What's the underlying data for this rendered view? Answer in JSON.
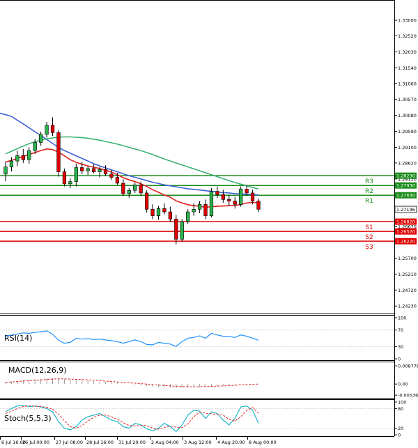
{
  "chart_data": {
    "type": "candlestick",
    "main": {
      "y_range": [
        1.24,
        1.336
      ],
      "price_ticks": [
        "1.33000",
        "1.32520",
        "1.32030",
        "1.31540",
        "1.31060",
        "1.30570",
        "1.30080",
        "1.29590",
        "1.29100",
        "1.28620",
        "1.28130",
        "1.27640",
        "1.27160",
        "1.26670",
        "1.26180",
        "1.25700",
        "1.25210",
        "1.24720",
        "1.24230"
      ],
      "time_labels": [
        "6 Jul 16:00",
        "26 Jul 00:00",
        "27 Jul 08:00",
        "28 Jul 16:00",
        "31 Jul 20:00",
        "2 Aug 04:00",
        "3 Aug 12:00",
        "4 Aug 20:00",
        "8 Aug 00:00"
      ],
      "levels": [
        {
          "name": "R3",
          "value": 1.2823,
          "tag": "1.28230",
          "color": "#1a8c1a"
        },
        {
          "name": "R2",
          "value": 1.2793,
          "tag": "1.27930",
          "color": "#1a8c1a"
        },
        {
          "name": "R1",
          "value": 1.2763,
          "tag": "1.27630",
          "color": "#1a8c1a"
        },
        {
          "name": "S1",
          "value": 1.2682,
          "tag": "1.26820",
          "color": "#e00000"
        },
        {
          "name": "S2",
          "value": 1.2652,
          "tag": "1.26520",
          "color": "#e00000"
        },
        {
          "name": "S3",
          "value": 1.2622,
          "tag": "1.26220",
          "color": "#e00000"
        }
      ],
      "current_price": {
        "value": 1.27196,
        "tag": "1.27196"
      },
      "candles": [
        {
          "o": 1.2828,
          "h": 1.2866,
          "l": 1.2806,
          "c": 1.285
        },
        {
          "o": 1.285,
          "h": 1.288,
          "l": 1.2836,
          "c": 1.2868
        },
        {
          "o": 1.2868,
          "h": 1.2898,
          "l": 1.2852,
          "c": 1.2885
        },
        {
          "o": 1.2885,
          "h": 1.2905,
          "l": 1.2862,
          "c": 1.2872
        },
        {
          "o": 1.2872,
          "h": 1.291,
          "l": 1.286,
          "c": 1.29
        },
        {
          "o": 1.29,
          "h": 1.2935,
          "l": 1.289,
          "c": 1.2925
        },
        {
          "o": 1.2925,
          "h": 1.2958,
          "l": 1.2915,
          "c": 1.295
        },
        {
          "o": 1.295,
          "h": 1.2988,
          "l": 1.294,
          "c": 1.2978
        },
        {
          "o": 1.2978,
          "h": 1.3002,
          "l": 1.2945,
          "c": 1.2955
        },
        {
          "o": 1.2955,
          "h": 1.2962,
          "l": 1.282,
          "c": 1.2835
        },
        {
          "o": 1.2835,
          "h": 1.2845,
          "l": 1.279,
          "c": 1.2798
        },
        {
          "o": 1.2798,
          "h": 1.2815,
          "l": 1.2785,
          "c": 1.2805
        },
        {
          "o": 1.2805,
          "h": 1.286,
          "l": 1.279,
          "c": 1.2848
        },
        {
          "o": 1.2848,
          "h": 1.2865,
          "l": 1.2828,
          "c": 1.2838
        },
        {
          "o": 1.2838,
          "h": 1.2852,
          "l": 1.2825,
          "c": 1.2845
        },
        {
          "o": 1.2845,
          "h": 1.2858,
          "l": 1.283,
          "c": 1.2835
        },
        {
          "o": 1.2835,
          "h": 1.285,
          "l": 1.2818,
          "c": 1.2842
        },
        {
          "o": 1.2842,
          "h": 1.2855,
          "l": 1.2822,
          "c": 1.2828
        },
        {
          "o": 1.2828,
          "h": 1.284,
          "l": 1.281,
          "c": 1.2818
        },
        {
          "o": 1.2818,
          "h": 1.2832,
          "l": 1.2795,
          "c": 1.28
        },
        {
          "o": 1.28,
          "h": 1.2812,
          "l": 1.276,
          "c": 1.2768
        },
        {
          "o": 1.2768,
          "h": 1.2785,
          "l": 1.2755,
          "c": 1.2778
        },
        {
          "o": 1.2778,
          "h": 1.2802,
          "l": 1.277,
          "c": 1.2795
        },
        {
          "o": 1.2795,
          "h": 1.2805,
          "l": 1.276,
          "c": 1.277
        },
        {
          "o": 1.277,
          "h": 1.2778,
          "l": 1.271,
          "c": 1.272
        },
        {
          "o": 1.272,
          "h": 1.2735,
          "l": 1.269,
          "c": 1.27
        },
        {
          "o": 1.27,
          "h": 1.273,
          "l": 1.2688,
          "c": 1.2722
        },
        {
          "o": 1.2722,
          "h": 1.2738,
          "l": 1.2705,
          "c": 1.2712
        },
        {
          "o": 1.2712,
          "h": 1.2728,
          "l": 1.268,
          "c": 1.269
        },
        {
          "o": 1.269,
          "h": 1.2702,
          "l": 1.2612,
          "c": 1.2628
        },
        {
          "o": 1.2628,
          "h": 1.269,
          "l": 1.262,
          "c": 1.2682
        },
        {
          "o": 1.2682,
          "h": 1.272,
          "l": 1.2675,
          "c": 1.2712
        },
        {
          "o": 1.2712,
          "h": 1.2738,
          "l": 1.27,
          "c": 1.272
        },
        {
          "o": 1.272,
          "h": 1.2745,
          "l": 1.2708,
          "c": 1.2735
        },
        {
          "o": 1.2735,
          "h": 1.275,
          "l": 1.269,
          "c": 1.27
        },
        {
          "o": 1.27,
          "h": 1.2785,
          "l": 1.2695,
          "c": 1.2775
        },
        {
          "o": 1.2775,
          "h": 1.279,
          "l": 1.2755,
          "c": 1.2765
        },
        {
          "o": 1.2765,
          "h": 1.278,
          "l": 1.274,
          "c": 1.275
        },
        {
          "o": 1.275,
          "h": 1.2765,
          "l": 1.273,
          "c": 1.2745
        },
        {
          "o": 1.2745,
          "h": 1.2758,
          "l": 1.2722,
          "c": 1.2735
        },
        {
          "o": 1.2735,
          "h": 1.279,
          "l": 1.2728,
          "c": 1.2782
        },
        {
          "o": 1.2782,
          "h": 1.2795,
          "l": 1.2762,
          "c": 1.277
        },
        {
          "o": 1.277,
          "h": 1.278,
          "l": 1.2735,
          "c": 1.2745
        },
        {
          "o": 1.2745,
          "h": 1.2752,
          "l": 1.2712,
          "c": 1.272
        }
      ],
      "moving_averages": [
        {
          "name": "MA blue",
          "color": "#3f5fd6",
          "values": [
            1.3015,
            1.3005,
            1.2993,
            1.2982,
            1.297,
            1.2958,
            1.2946,
            1.2934,
            1.2922,
            1.291,
            1.29,
            1.2892,
            1.2884,
            1.2876,
            1.2868,
            1.286,
            1.2853,
            1.2847,
            1.2841,
            1.2835,
            1.2829,
            1.2823,
            1.2818,
            1.2813,
            1.2808,
            1.2803,
            1.2799,
            1.2795,
            1.2792,
            1.2789,
            1.2786,
            1.2783,
            1.2781,
            1.2779,
            1.2777,
            1.2775,
            1.2773,
            1.2771,
            1.277,
            1.2768,
            1.2767,
            1.2766,
            1.2765,
            1.2764
          ]
        },
        {
          "name": "MA red",
          "color": "#e02020",
          "values": [
            1.2865,
            1.287,
            1.2876,
            1.2882,
            1.2888,
            1.2894,
            1.29,
            1.2905,
            1.2903,
            1.2895,
            1.2884,
            1.2872,
            1.2864,
            1.2858,
            1.2853,
            1.2849,
            1.2845,
            1.284,
            1.2834,
            1.2826,
            1.2817,
            1.281,
            1.2805,
            1.2798,
            1.279,
            1.278,
            1.2772,
            1.2764,
            1.2757,
            1.2746,
            1.2739,
            1.2734,
            1.2731,
            1.2729,
            1.2726,
            1.2728,
            1.2729,
            1.273,
            1.2731,
            1.2731,
            1.2735,
            1.2739,
            1.2741,
            1.274
          ]
        },
        {
          "name": "MA green",
          "color": "#3cb371",
          "values": [
            1.289,
            1.2898,
            1.2906,
            1.2914,
            1.2921,
            1.2927,
            1.2932,
            1.2936,
            1.2939,
            1.2941,
            1.2942,
            1.2942,
            1.2941,
            1.294,
            1.2938,
            1.2935,
            1.2932,
            1.2928,
            1.2924,
            1.292,
            1.2915,
            1.291,
            1.2905,
            1.29,
            1.2894,
            1.2888,
            1.2881,
            1.2874,
            1.2868,
            1.2862,
            1.2856,
            1.285,
            1.2844,
            1.2838,
            1.2832,
            1.2826,
            1.282,
            1.2814,
            1.2808,
            1.2802,
            1.2797,
            1.2792,
            1.2787,
            1.2782
          ]
        }
      ]
    },
    "rsi": {
      "label": "RSI(14)",
      "y_range": [
        0,
        100
      ],
      "ticks": [
        "100",
        "70",
        "30",
        "0"
      ],
      "color": "#1e90ff",
      "values": [
        55,
        58,
        60,
        63,
        62,
        64,
        66,
        68,
        60,
        45,
        38,
        40,
        50,
        48,
        49,
        47,
        48,
        46,
        44,
        42,
        38,
        42,
        46,
        42,
        35,
        34,
        40,
        38,
        36,
        30,
        42,
        50,
        52,
        56,
        50,
        62,
        58,
        55,
        54,
        52,
        58,
        55,
        50,
        45
      ]
    },
    "macd": {
      "label": "MACD(12,26,9)",
      "y_range": [
        -0.006,
        0.0095
      ],
      "ticks": [
        "0.008778",
        "0.00",
        "-0.005366"
      ],
      "signal_color": "#e02020",
      "histogram": [
        0.001,
        0.0013,
        0.0016,
        0.0019,
        0.0021,
        0.0024,
        0.0026,
        0.0028,
        0.0029,
        0.0028,
        0.0025,
        0.0022,
        0.002,
        0.0018,
        0.0016,
        0.0014,
        0.0012,
        0.001,
        0.0008,
        0.0006,
        0.0003,
        0.0,
        -0.0003,
        -0.0006,
        -0.0009,
        -0.0012,
        -0.0014,
        -0.0016,
        -0.0017,
        -0.0019,
        -0.0018,
        -0.0017,
        -0.0016,
        -0.0015,
        -0.0014,
        -0.0012,
        -0.001,
        -0.0008,
        -0.0006,
        -0.0004,
        -0.0002,
        -0.0001,
        0.0,
        0.0001
      ],
      "signal": [
        0.0008,
        0.001,
        0.0012,
        0.0014,
        0.0016,
        0.0018,
        0.002,
        0.0022,
        0.0024,
        0.0025,
        0.0025,
        0.0024,
        0.0023,
        0.0022,
        0.002,
        0.0018,
        0.0016,
        0.0014,
        0.0012,
        0.001,
        0.0008,
        0.0006,
        0.0004,
        0.0002,
        0.0,
        -0.0003,
        -0.0005,
        -0.0007,
        -0.0009,
        -0.0011,
        -0.0012,
        -0.0013,
        -0.0013,
        -0.0013,
        -0.0012,
        -0.0011,
        -0.001,
        -0.0009,
        -0.0008,
        -0.0006,
        -0.0004,
        -0.0003,
        -0.0001,
        0.0
      ]
    },
    "stoch": {
      "label": "Stoch(5,5,3)",
      "y_range": [
        0,
        100
      ],
      "ticks": [
        "100",
        "80",
        "20",
        "0"
      ],
      "k_color": "#1fb5c8",
      "d_color": "#e02020",
      "k": [
        70,
        80,
        88,
        90,
        86,
        88,
        85,
        80,
        70,
        40,
        20,
        15,
        25,
        45,
        55,
        60,
        65,
        55,
        45,
        40,
        25,
        20,
        35,
        30,
        18,
        12,
        20,
        35,
        25,
        10,
        30,
        60,
        75,
        72,
        50,
        70,
        65,
        45,
        30,
        50,
        85,
        88,
        75,
        35
      ],
      "d": [
        65,
        72,
        80,
        86,
        88,
        87,
        86,
        84,
        78,
        63,
        43,
        25,
        20,
        28,
        42,
        53,
        60,
        60,
        55,
        47,
        37,
        28,
        27,
        28,
        28,
        20,
        17,
        22,
        27,
        23,
        22,
        33,
        55,
        69,
        66,
        64,
        62,
        60,
        47,
        42,
        55,
        74,
        83,
        66
      ]
    }
  }
}
